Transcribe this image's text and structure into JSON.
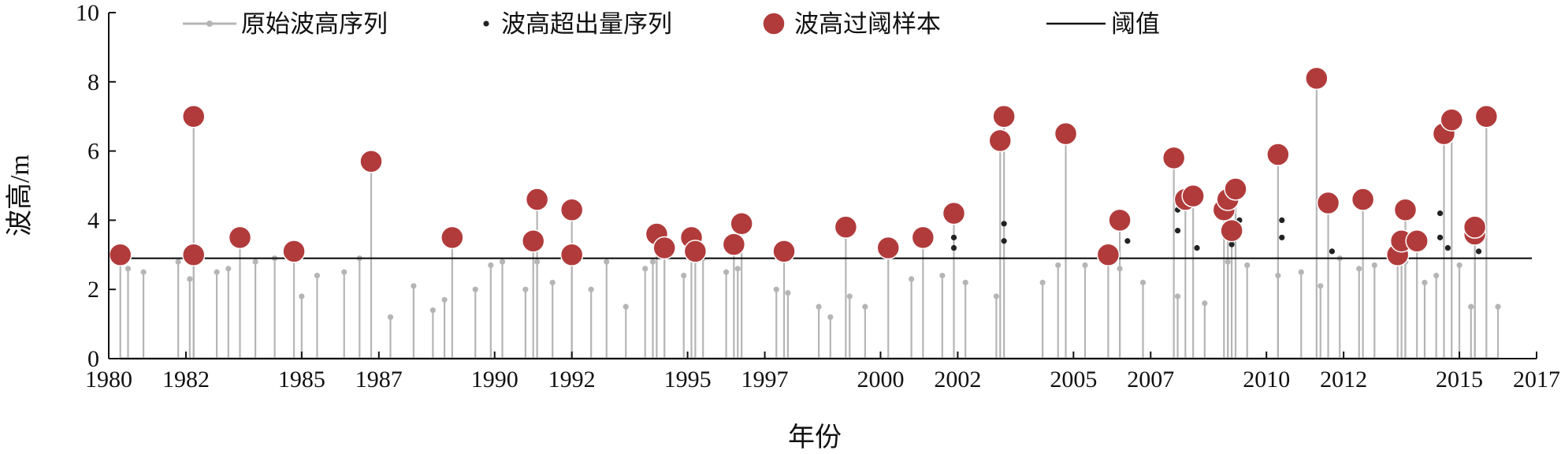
{
  "chart_data": {
    "type": "scatter",
    "title": "",
    "xlabel": "年份",
    "ylabel": "波高/m",
    "xlim": [
      1980,
      2017
    ],
    "ylim": [
      0,
      10
    ],
    "xticks": [
      1980,
      1982,
      1985,
      1987,
      1990,
      1992,
      1995,
      1997,
      2000,
      2002,
      2005,
      2007,
      2010,
      2012,
      2015,
      2017
    ],
    "yticks": [
      0,
      2,
      4,
      6,
      8,
      10
    ],
    "threshold": 2.9,
    "legend_position": "top",
    "colors": {
      "raw": "#b5b5b5",
      "excess": "#222222",
      "sample": "#b13b3b",
      "threshold": "#111111"
    },
    "legend": [
      {
        "key": "raw",
        "label": "原始波高序列"
      },
      {
        "key": "excess",
        "label": "波高超出量序列"
      },
      {
        "key": "sample",
        "label": "波高过阈样本"
      },
      {
        "key": "threshold",
        "label": "阈值"
      }
    ],
    "series": [
      {
        "key": "raw",
        "name": "原始波高序列",
        "stems": [
          {
            "x": 1980.5,
            "y": 2.6
          },
          {
            "x": 1980.9,
            "y": 2.5
          },
          {
            "x": 1981.8,
            "y": 2.8
          },
          {
            "x": 1982.1,
            "y": 2.3
          },
          {
            "x": 1982.8,
            "y": 2.5
          },
          {
            "x": 1983.1,
            "y": 2.6
          },
          {
            "x": 1983.8,
            "y": 2.8
          },
          {
            "x": 1984.3,
            "y": 2.9
          },
          {
            "x": 1985.0,
            "y": 1.8
          },
          {
            "x": 1985.4,
            "y": 2.4
          },
          {
            "x": 1986.1,
            "y": 2.5
          },
          {
            "x": 1986.5,
            "y": 2.9
          },
          {
            "x": 1987.3,
            "y": 1.2
          },
          {
            "x": 1987.9,
            "y": 2.1
          },
          {
            "x": 1988.4,
            "y": 1.4
          },
          {
            "x": 1988.7,
            "y": 1.7
          },
          {
            "x": 1989.5,
            "y": 2.0
          },
          {
            "x": 1989.9,
            "y": 2.7
          },
          {
            "x": 1990.2,
            "y": 2.8
          },
          {
            "x": 1990.8,
            "y": 2.0
          },
          {
            "x": 1991.1,
            "y": 2.8
          },
          {
            "x": 1991.5,
            "y": 2.2
          },
          {
            "x": 1992.5,
            "y": 2.0
          },
          {
            "x": 1992.9,
            "y": 2.8
          },
          {
            "x": 1993.4,
            "y": 1.5
          },
          {
            "x": 1993.9,
            "y": 2.6
          },
          {
            "x": 1994.1,
            "y": 2.8
          },
          {
            "x": 1994.9,
            "y": 2.4
          },
          {
            "x": 1995.4,
            "y": 2.9
          },
          {
            "x": 1996.0,
            "y": 2.5
          },
          {
            "x": 1996.3,
            "y": 2.6
          },
          {
            "x": 1997.3,
            "y": 2.0
          },
          {
            "x": 1997.6,
            "y": 1.9
          },
          {
            "x": 1998.4,
            "y": 1.5
          },
          {
            "x": 1998.7,
            "y": 1.2
          },
          {
            "x": 1999.2,
            "y": 1.8
          },
          {
            "x": 1999.6,
            "y": 1.5
          },
          {
            "x": 2000.8,
            "y": 2.3
          },
          {
            "x": 2001.6,
            "y": 2.4
          },
          {
            "x": 2002.2,
            "y": 2.2
          },
          {
            "x": 2003.0,
            "y": 1.8
          },
          {
            "x": 2004.2,
            "y": 2.2
          },
          {
            "x": 2004.6,
            "y": 2.7
          },
          {
            "x": 2005.3,
            "y": 2.7
          },
          {
            "x": 2006.2,
            "y": 2.6
          },
          {
            "x": 2006.8,
            "y": 2.2
          },
          {
            "x": 2007.7,
            "y": 1.8
          },
          {
            "x": 2008.4,
            "y": 1.6
          },
          {
            "x": 2009.0,
            "y": 2.8
          },
          {
            "x": 2009.5,
            "y": 2.7
          },
          {
            "x": 2010.3,
            "y": 2.4
          },
          {
            "x": 2010.9,
            "y": 2.5
          },
          {
            "x": 2011.4,
            "y": 2.1
          },
          {
            "x": 2011.9,
            "y": 2.9
          },
          {
            "x": 2012.4,
            "y": 2.6
          },
          {
            "x": 2012.8,
            "y": 2.7
          },
          {
            "x": 2013.6,
            "y": 2.8
          },
          {
            "x": 2014.1,
            "y": 2.2
          },
          {
            "x": 2014.4,
            "y": 2.4
          },
          {
            "x": 2015.0,
            "y": 2.7
          },
          {
            "x": 2015.3,
            "y": 1.5
          },
          {
            "x": 2016.0,
            "y": 1.5
          }
        ]
      },
      {
        "key": "excess",
        "name": "波高超出量序列",
        "points": [
          {
            "x": 2001.9,
            "y": 3.5
          },
          {
            "x": 2001.9,
            "y": 3.2
          },
          {
            "x": 2003.2,
            "y": 3.9
          },
          {
            "x": 2003.2,
            "y": 3.4
          },
          {
            "x": 2006.4,
            "y": 3.4
          },
          {
            "x": 2007.7,
            "y": 4.3
          },
          {
            "x": 2007.7,
            "y": 3.7
          },
          {
            "x": 2008.2,
            "y": 3.2
          },
          {
            "x": 2009.1,
            "y": 3.3
          },
          {
            "x": 2009.3,
            "y": 4.0
          },
          {
            "x": 2010.4,
            "y": 4.0
          },
          {
            "x": 2010.4,
            "y": 3.5
          },
          {
            "x": 2011.7,
            "y": 3.1
          },
          {
            "x": 2014.5,
            "y": 4.2
          },
          {
            "x": 2014.5,
            "y": 3.5
          },
          {
            "x": 2014.7,
            "y": 3.2
          },
          {
            "x": 2015.5,
            "y": 3.1
          }
        ]
      },
      {
        "key": "sample",
        "name": "波高过阈样本",
        "points": [
          {
            "x": 1980.3,
            "y": 3.0
          },
          {
            "x": 1982.2,
            "y": 7.0
          },
          {
            "x": 1982.2,
            "y": 3.0
          },
          {
            "x": 1983.4,
            "y": 3.5
          },
          {
            "x": 1984.8,
            "y": 3.1
          },
          {
            "x": 1986.8,
            "y": 5.7
          },
          {
            "x": 1988.9,
            "y": 3.5
          },
          {
            "x": 1991.0,
            "y": 3.4
          },
          {
            "x": 1991.1,
            "y": 4.6
          },
          {
            "x": 1992.0,
            "y": 4.3
          },
          {
            "x": 1992.0,
            "y": 3.0
          },
          {
            "x": 1994.2,
            "y": 3.6
          },
          {
            "x": 1994.4,
            "y": 3.2
          },
          {
            "x": 1995.1,
            "y": 3.5
          },
          {
            "x": 1995.2,
            "y": 3.1
          },
          {
            "x": 1996.2,
            "y": 3.3
          },
          {
            "x": 1996.4,
            "y": 3.9
          },
          {
            "x": 1997.5,
            "y": 3.1
          },
          {
            "x": 1999.1,
            "y": 3.8
          },
          {
            "x": 2000.2,
            "y": 3.2
          },
          {
            "x": 2001.1,
            "y": 3.5
          },
          {
            "x": 2001.9,
            "y": 4.2
          },
          {
            "x": 2003.1,
            "y": 6.3
          },
          {
            "x": 2003.2,
            "y": 7.0
          },
          {
            "x": 2004.8,
            "y": 6.5
          },
          {
            "x": 2005.9,
            "y": 3.0
          },
          {
            "x": 2006.2,
            "y": 4.0
          },
          {
            "x": 2007.6,
            "y": 5.8
          },
          {
            "x": 2007.9,
            "y": 4.6
          },
          {
            "x": 2008.1,
            "y": 4.7
          },
          {
            "x": 2008.9,
            "y": 4.3
          },
          {
            "x": 2009.0,
            "y": 4.6
          },
          {
            "x": 2009.1,
            "y": 3.7
          },
          {
            "x": 2009.2,
            "y": 4.9
          },
          {
            "x": 2010.3,
            "y": 5.9
          },
          {
            "x": 2011.3,
            "y": 8.1
          },
          {
            "x": 2011.6,
            "y": 4.5
          },
          {
            "x": 2012.5,
            "y": 4.6
          },
          {
            "x": 2013.4,
            "y": 3.0
          },
          {
            "x": 2013.5,
            "y": 3.4
          },
          {
            "x": 2013.6,
            "y": 4.3
          },
          {
            "x": 2013.9,
            "y": 3.4
          },
          {
            "x": 2014.6,
            "y": 6.5
          },
          {
            "x": 2014.8,
            "y": 6.9
          },
          {
            "x": 2015.4,
            "y": 3.6
          },
          {
            "x": 2015.4,
            "y": 3.8
          },
          {
            "x": 2015.7,
            "y": 7.0
          }
        ]
      }
    ]
  }
}
